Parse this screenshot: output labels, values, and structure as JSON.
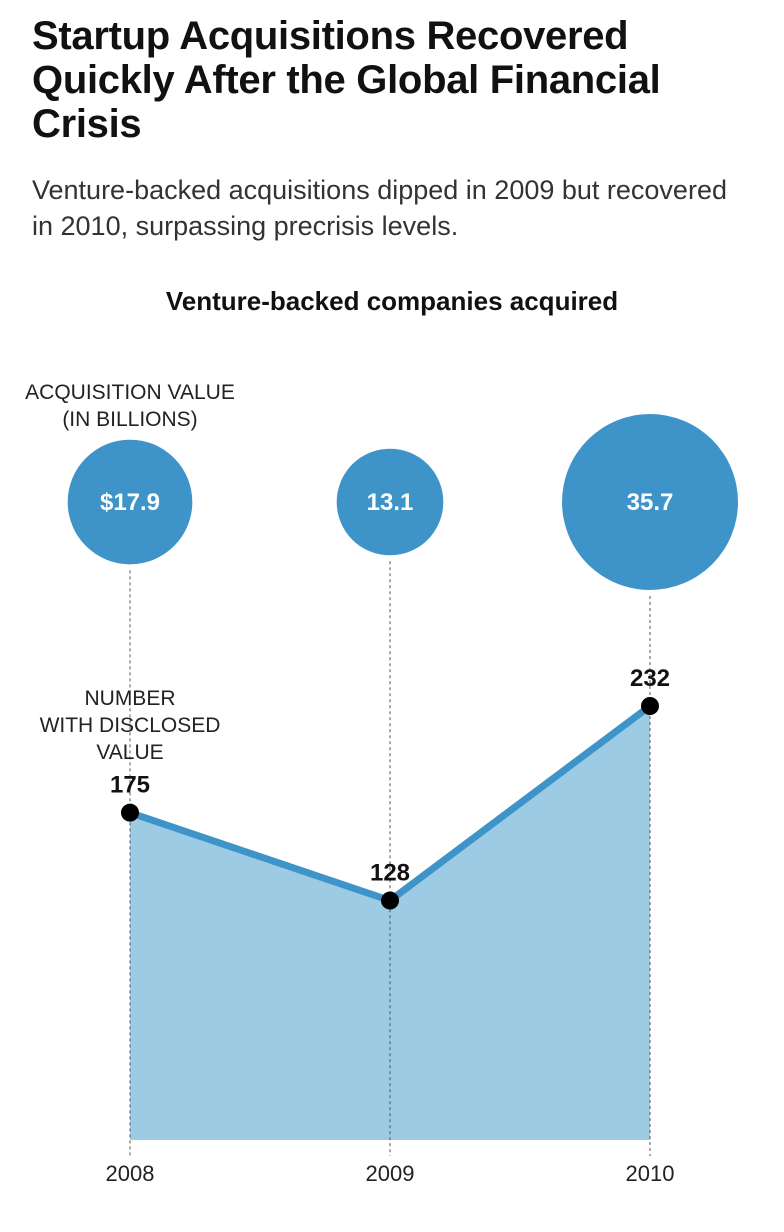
{
  "header": {
    "title": "Startup Acquisitions Recovered Quickly After the Global Financial Crisis",
    "subtitle": "Venture-backed acquisitions dipped in 2009 but recovered in 2010, surpassing precrisis levels."
  },
  "chart_data": {
    "type": "area",
    "title": "Venture-backed companies acquired",
    "x": [
      "2008",
      "2009",
      "2010"
    ],
    "bubble_label_lines": [
      "ACQUISITION VALUE",
      "(IN BILLIONS)"
    ],
    "bubble_values": [
      17.9,
      13.1,
      35.7
    ],
    "bubble_labels": [
      "$17.9",
      "13.1",
      "35.7"
    ],
    "line_label_lines": [
      "NUMBER",
      "WITH DISCLOSED",
      "VALUE"
    ],
    "values": [
      175,
      128,
      232
    ],
    "value_labels": [
      "175",
      "128",
      "232"
    ],
    "ylim": [
      0,
      232
    ],
    "grid": false,
    "colors": {
      "bubble": "#3e94c8",
      "line": "#3e94c8",
      "area": "#9ccbe3",
      "marker": "#000000",
      "guide": "#555555"
    }
  }
}
